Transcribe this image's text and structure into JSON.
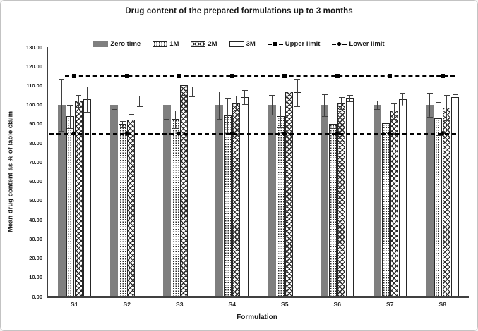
{
  "chart_data": {
    "type": "bar",
    "title": "Drug content of the prepared formulations up to 3 months",
    "xlabel": "Formulation",
    "ylabel": "Mean drug content as % of lable claim",
    "ylim": [
      0,
      130
    ],
    "y_tick_step": 10,
    "y_tick_labels": [
      "0.00",
      "10.00",
      "20.00",
      "30.00",
      "40.00",
      "50.00",
      "60.00",
      "70.00",
      "80.00",
      "90.00",
      "100.00",
      "110.00",
      "120.00",
      "130.00"
    ],
    "categories": [
      "S1",
      "S2",
      "S3",
      "S4",
      "S5",
      "S6",
      "S7",
      "S8"
    ],
    "series": [
      {
        "name": "Zero time",
        "pattern": "solid-gray",
        "values": [
          100,
          100,
          100,
          100,
          100,
          100,
          100,
          100
        ],
        "errors": [
          13.5,
          2,
          7,
          7,
          5,
          5.5,
          2,
          6
        ]
      },
      {
        "name": "1M",
        "pattern": "dotted",
        "values": [
          94,
          90,
          92.5,
          94.5,
          94,
          90,
          90.5,
          93
        ],
        "errors": [
          6,
          1.5,
          4.5,
          9,
          5.5,
          2,
          1.5,
          8.5
        ]
      },
      {
        "name": "2M",
        "pattern": "diamond-hatch",
        "values": [
          102,
          92,
          110,
          101,
          107,
          101,
          97,
          98.5
        ],
        "errors": [
          3,
          3,
          4.5,
          3.5,
          3.5,
          3,
          4,
          6.5
        ]
      },
      {
        "name": "3M",
        "pattern": "plain",
        "values": [
          103,
          102,
          107,
          104,
          106.5,
          103.5,
          103,
          104
        ],
        "errors": [
          6.5,
          2.5,
          2.5,
          3.5,
          7,
          1.5,
          3,
          1.5
        ]
      }
    ],
    "limits": [
      {
        "name": "Upper limit",
        "value": 115,
        "marker": "square"
      },
      {
        "name": "Lower limit",
        "value": 85,
        "marker": "diamond"
      }
    ],
    "legend_position": "top",
    "grid": false,
    "colors": {
      "bar_fill_gray": "#7f7f7f",
      "pattern_ink": "#262626",
      "error_bar": "#3f3f3f",
      "limit_line": "#000000",
      "axis": "#404040",
      "text": "#1a1a1a",
      "figure_border": "#c3c3c3"
    }
  }
}
